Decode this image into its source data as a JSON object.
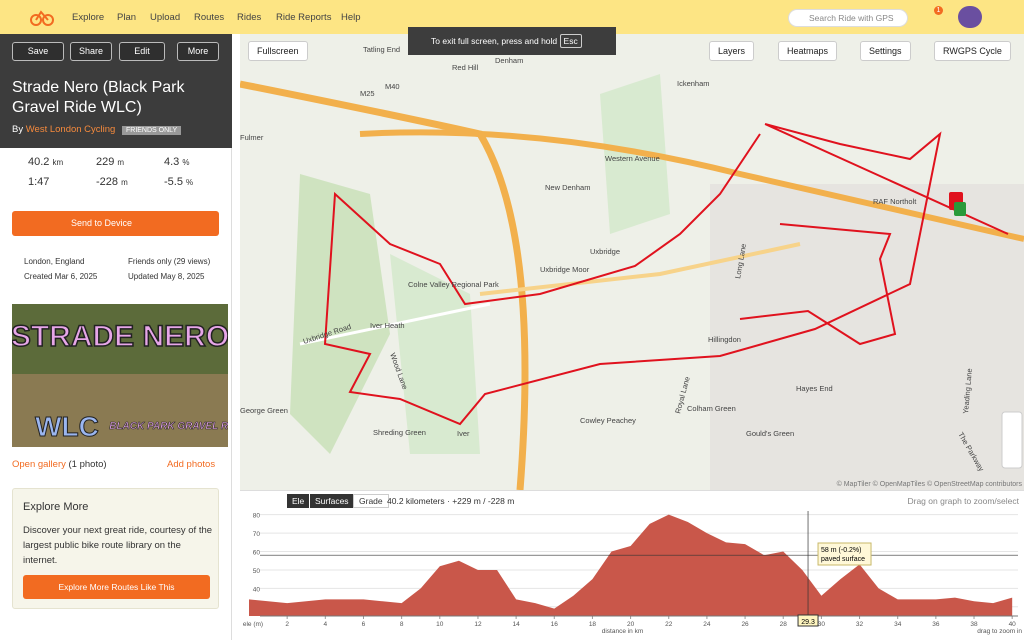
{
  "nav": {
    "links": [
      "Explore",
      "Plan",
      "Upload",
      "Routes",
      "Rides",
      "Ride Reports",
      "Help"
    ],
    "search": "Search Ride with GPS",
    "badge": "1"
  },
  "sidebar": {
    "buttons": [
      "Save",
      "Share",
      "Edit",
      "More"
    ],
    "title": "Strade Nero (Black Park Gravel Ride WLC)",
    "by": "By",
    "club": "West London Cycling",
    "visibility": "FRIENDS ONLY",
    "stats": [
      [
        "40.2",
        "km"
      ],
      [
        "229",
        "m"
      ],
      [
        "4.3",
        "%"
      ],
      [
        "1:47",
        ""
      ],
      [
        "-228",
        "m"
      ],
      [
        "-5.5",
        "%"
      ]
    ],
    "send": "Send to Device",
    "location": "London, England",
    "privacy": "Friends only (29 views)",
    "created": "Created Mar 6, 2025",
    "updated": "Updated May 8, 2025",
    "image": {
      "title": "STRADE NERO",
      "logo": "WLC",
      "subtitle": "BLACK PARK GRAVEL RIDE"
    },
    "gallery": "Open gallery",
    "photos": "(1 photo)",
    "add_photos": "Add photos",
    "explore": {
      "title": "Explore More",
      "text": "Discover your next great ride, courtesy of the largest public bike route library on the internet.",
      "button": "Explore More Routes Like This"
    }
  },
  "map": {
    "fullscreen": "Fullscreen",
    "exit_hint": "To exit full screen, press and hold",
    "esc": "Esc",
    "controls": [
      "Layers",
      "Heatmaps",
      "Settings",
      "RWGPS Cycle"
    ],
    "attribution": "© MapTiler © OpenMapTiles © OpenStreetMap contributors",
    "labels": [
      "Tatling End",
      "Red Hill",
      "Denham",
      "Ickenham",
      "Western Avenue",
      "New Denham",
      "RAF Northolt",
      "Uxbridge",
      "Uxbridge Moor",
      "Colne Valley Regional Park",
      "Iver Heath",
      "Hillingdon",
      "Hayes End",
      "Colham Green",
      "Cowley Peachey",
      "George Green",
      "Shreding Green",
      "Iver",
      "Gould's Green",
      "Fulmer",
      "Long Lane",
      "Royal Lane",
      "Yeading Lane",
      "Uxbridge Road",
      "Wood Lane",
      "The Parkway",
      "M25",
      "M40"
    ]
  },
  "elevation": {
    "tabs": [
      "Ele",
      "Surfaces",
      "Grade"
    ],
    "summary": "40.2 kilometers · +229 m / -228 m",
    "hint": "Drag on graph to zoom/select",
    "chart_data": {
      "type": "area",
      "x": [
        0,
        1,
        2,
        3,
        4,
        5,
        6,
        7,
        8,
        9,
        10,
        11,
        12,
        13,
        14,
        15,
        16,
        17,
        18,
        19,
        20,
        21,
        22,
        23,
        24,
        25,
        26,
        27,
        28,
        29,
        30,
        31,
        32,
        33,
        34,
        35,
        36,
        37,
        38,
        39,
        40
      ],
      "values": [
        34,
        33,
        32,
        33,
        34,
        34,
        34,
        33,
        32,
        40,
        52,
        55,
        50,
        50,
        34,
        32,
        29,
        36,
        45,
        60,
        63,
        75,
        80,
        76,
        70,
        65,
        64,
        58,
        60,
        50,
        36,
        45,
        53,
        40,
        34,
        34,
        34,
        35,
        33,
        32,
        35
      ],
      "color": "#c9574a",
      "xlim": [
        0,
        40.2
      ],
      "ylim": [
        25,
        82
      ],
      "xticks": [
        2,
        4,
        6,
        8,
        10,
        12,
        14,
        16,
        18,
        20,
        22,
        24,
        26,
        28,
        30,
        32,
        34,
        36,
        38,
        40
      ],
      "yticks": [
        30,
        40,
        50,
        60,
        70,
        80
      ],
      "ylabel": "ele (m)",
      "xlabel": "distance in km",
      "cursor": 29.3,
      "tooltip": [
        "58 m (-0.2%)",
        "paved surface"
      ],
      "zoom_hint": "drag to zoom in"
    }
  }
}
